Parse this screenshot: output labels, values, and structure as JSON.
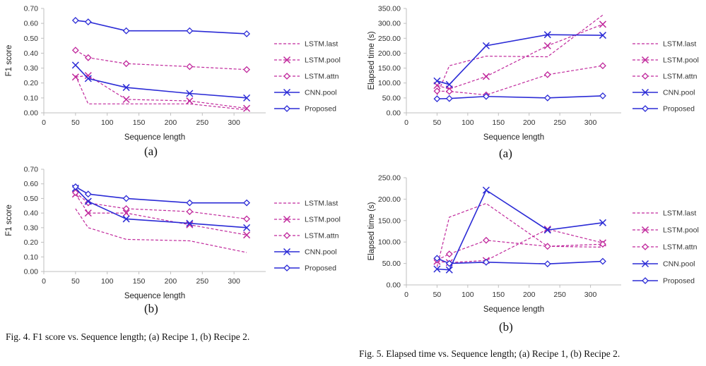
{
  "captions": {
    "fig4": "Fig. 4.   F1 score vs. Sequence length; (a) Recipe 1, (b) Recipe 2.",
    "fig5": "Fig. 5.   Elapsed time vs. Sequence length; (a) Recipe 1, (b) Recipe 2."
  },
  "colors": {
    "lstm": "#c0289c",
    "cnn_proposed": "#2b2bd6",
    "axis": "#bfbfbf"
  },
  "chart_data": [
    {
      "type": "line",
      "panel_label": "(a)",
      "xlabel": "Sequence length",
      "ylabel": "F1 score",
      "xlim": [
        0,
        350
      ],
      "ylim": [
        0,
        0.7
      ],
      "xticks": [
        "0",
        "50",
        "100",
        "150",
        "200",
        "250",
        "300"
      ],
      "yticks": [
        "0.00",
        "0.10",
        "0.20",
        "0.30",
        "0.40",
        "0.50",
        "0.60",
        "0.70"
      ],
      "legend": "right",
      "x": [
        50,
        70,
        130,
        230,
        320
      ],
      "series": [
        {
          "name": "LSTM.last",
          "style": "dash",
          "marker": "none",
          "values": [
            0.25,
            0.06,
            0.06,
            0.06,
            0.02
          ]
        },
        {
          "name": "LSTM.pool",
          "style": "dash",
          "marker": "x",
          "values": [
            0.24,
            0.25,
            0.09,
            0.08,
            0.03
          ]
        },
        {
          "name": "LSTM.attn",
          "style": "dash",
          "marker": "diamond",
          "values": [
            0.42,
            0.37,
            0.33,
            0.31,
            0.29
          ]
        },
        {
          "name": "CNN.pool",
          "style": "solid",
          "marker": "x",
          "values": [
            0.32,
            0.23,
            0.17,
            0.13,
            0.1
          ]
        },
        {
          "name": "Proposed",
          "style": "solid",
          "marker": "diamond",
          "values": [
            0.62,
            0.61,
            0.55,
            0.55,
            0.53
          ]
        }
      ]
    },
    {
      "type": "line",
      "panel_label": "(b)",
      "xlabel": "Sequence length",
      "ylabel": "F1 score",
      "xlim": [
        0,
        350
      ],
      "ylim": [
        0,
        0.7
      ],
      "xticks": [
        "0",
        "50",
        "100",
        "150",
        "200",
        "250",
        "300"
      ],
      "yticks": [
        "0.00",
        "0.10",
        "0.20",
        "0.30",
        "0.40",
        "0.50",
        "0.60",
        "0.70"
      ],
      "legend": "right",
      "x": [
        50,
        70,
        130,
        230,
        320
      ],
      "series": [
        {
          "name": "LSTM.last",
          "style": "dash",
          "marker": "none",
          "values": [
            0.43,
            0.3,
            0.22,
            0.21,
            0.13
          ]
        },
        {
          "name": "LSTM.pool",
          "style": "dash",
          "marker": "x",
          "values": [
            0.53,
            0.4,
            0.4,
            0.32,
            0.25
          ]
        },
        {
          "name": "LSTM.attn",
          "style": "dash",
          "marker": "diamond",
          "values": [
            0.54,
            0.47,
            0.43,
            0.41,
            0.36
          ]
        },
        {
          "name": "CNN.pool",
          "style": "solid",
          "marker": "x",
          "values": [
            0.57,
            0.48,
            0.36,
            0.33,
            0.3
          ]
        },
        {
          "name": "Proposed",
          "style": "solid",
          "marker": "diamond",
          "values": [
            0.58,
            0.53,
            0.5,
            0.47,
            0.47
          ]
        }
      ]
    },
    {
      "type": "line",
      "panel_label": "(a)",
      "xlabel": "Sequence length",
      "ylabel": "Elapsed time (s)",
      "xlim": [
        0,
        350
      ],
      "ylim": [
        0,
        350
      ],
      "xticks": [
        "0",
        "50",
        "100",
        "150",
        "200",
        "250",
        "300"
      ],
      "yticks": [
        "0.00",
        "50.00",
        "100.00",
        "150.00",
        "200.00",
        "250.00",
        "300.00",
        "350.00"
      ],
      "legend": "right",
      "x": [
        50,
        70,
        130,
        230,
        320
      ],
      "series": [
        {
          "name": "LSTM.last",
          "style": "dash",
          "marker": "none",
          "values": [
            60,
            158,
            190,
            188,
            328
          ]
        },
        {
          "name": "LSTM.pool",
          "style": "dash",
          "marker": "x",
          "values": [
            92,
            80,
            122,
            225,
            297
          ]
        },
        {
          "name": "LSTM.attn",
          "style": "dash",
          "marker": "diamond",
          "values": [
            73,
            72,
            60,
            128,
            158
          ]
        },
        {
          "name": "CNN.pool",
          "style": "solid",
          "marker": "x",
          "values": [
            107,
            95,
            225,
            262,
            260
          ]
        },
        {
          "name": "Proposed",
          "style": "solid",
          "marker": "diamond",
          "values": [
            47,
            48,
            55,
            50,
            57
          ]
        }
      ]
    },
    {
      "type": "line",
      "panel_label": "(b)",
      "xlabel": "Sequence length",
      "ylabel": "Elapsed time (s)",
      "xlim": [
        0,
        350
      ],
      "ylim": [
        0,
        250
      ],
      "xticks": [
        "0",
        "50",
        "100",
        "150",
        "200",
        "250",
        "300"
      ],
      "yticks": [
        "0.00",
        "50.00",
        "100.00",
        "150.00",
        "200.00",
        "250.00"
      ],
      "legend": "right",
      "x": [
        50,
        70,
        130,
        230,
        320
      ],
      "series": [
        {
          "name": "LSTM.last",
          "style": "dash",
          "marker": "none",
          "values": [
            42,
            158,
            190,
            90,
            88
          ]
        },
        {
          "name": "LSTM.pool",
          "style": "dash",
          "marker": "x",
          "values": [
            55,
            52,
            57,
            130,
            98
          ]
        },
        {
          "name": "LSTM.attn",
          "style": "dash",
          "marker": "diamond",
          "values": [
            58,
            72,
            104,
            90,
            95
          ]
        },
        {
          "name": "CNN.pool",
          "style": "solid",
          "marker": "x",
          "values": [
            37,
            35,
            221,
            128,
            145
          ]
        },
        {
          "name": "Proposed",
          "style": "solid",
          "marker": "diamond",
          "values": [
            62,
            50,
            53,
            49,
            55
          ]
        }
      ]
    }
  ]
}
